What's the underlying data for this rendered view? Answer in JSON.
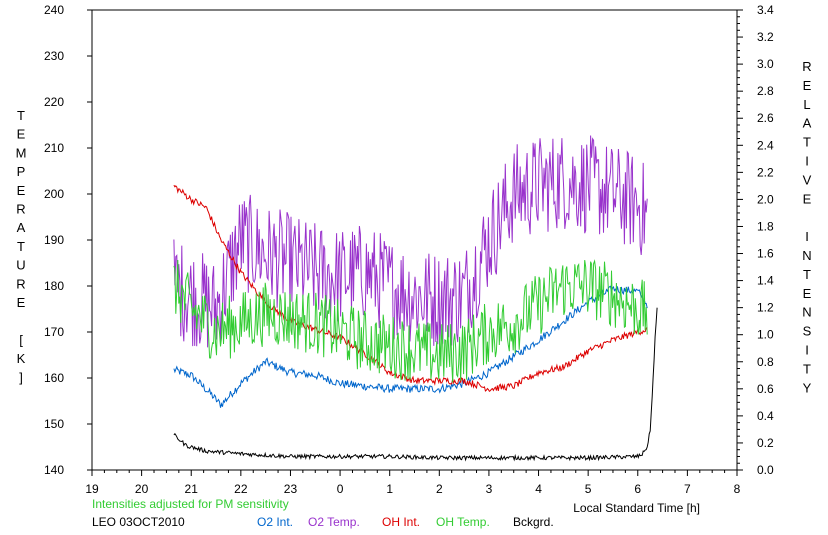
{
  "chart_data": {
    "type": "line",
    "xlabel": "Local Standard Time [h]",
    "ylabel_left": "TEMPERATURE [K]",
    "ylabel_right": "RELATIVE INTENSITY",
    "left_axis": {
      "ylim": [
        140,
        240
      ],
      "ticks": [
        140,
        150,
        160,
        170,
        180,
        190,
        200,
        210,
        220,
        230,
        240
      ]
    },
    "right_axis": {
      "ylim": [
        0,
        3.4
      ],
      "ticks": [
        "0.0",
        "0.2",
        "0.4",
        "0.6",
        "0.8",
        "1.0",
        "1.2",
        "1.4",
        "1.6",
        "1.8",
        "2.0",
        "2.2",
        "2.4",
        "2.6",
        "2.8",
        "3.0",
        "3.2",
        "3.4"
      ]
    },
    "x_axis": {
      "range": [
        19,
        32
      ],
      "ticks": [
        19,
        20,
        21,
        22,
        23,
        24,
        25,
        26,
        27,
        28,
        29,
        30,
        31,
        32
      ],
      "tick_labels": [
        "19",
        "20",
        "21",
        "22",
        "23",
        "0",
        "1",
        "2",
        "3",
        "4",
        "5",
        "6",
        "7",
        "8"
      ]
    },
    "grid": false,
    "note": "Intensities adjusted for PM sensitivity",
    "station": "LEO 03OCT2010",
    "series": [
      {
        "name": "O2 Int.",
        "axis": "right",
        "color": "#0066cc",
        "x": [
          20.65,
          21.0,
          21.4,
          21.6,
          22.0,
          22.5,
          23.0,
          23.5,
          24.0,
          24.5,
          25.0,
          25.5,
          26.0,
          26.5,
          27.0,
          27.5,
          28.0,
          28.5,
          29.0,
          29.5,
          30.0,
          30.2
        ],
        "y": [
          0.74,
          0.7,
          0.56,
          0.48,
          0.64,
          0.8,
          0.72,
          0.7,
          0.64,
          0.62,
          0.6,
          0.6,
          0.6,
          0.64,
          0.72,
          0.84,
          0.96,
          1.1,
          1.24,
          1.34,
          1.32,
          1.22
        ]
      },
      {
        "name": "O2 Temp.",
        "axis": "left",
        "color": "#9933cc",
        "x": [
          20.65,
          21.0,
          21.5,
          22.0,
          22.5,
          23.0,
          23.5,
          24.0,
          24.5,
          25.0,
          25.5,
          26.0,
          26.5,
          27.0,
          27.5,
          28.0,
          28.5,
          29.0,
          29.5,
          30.0,
          30.2
        ],
        "y": [
          180,
          178,
          175,
          190,
          187,
          185,
          183,
          182,
          183,
          180,
          178,
          177,
          178,
          190,
          200,
          202,
          203,
          202,
          200,
          198,
          195
        ]
      },
      {
        "name": "OH Int.",
        "axis": "right",
        "color": "#dd0000",
        "x": [
          20.65,
          21.0,
          21.3,
          21.6,
          22.0,
          22.5,
          23.0,
          23.5,
          24.0,
          24.5,
          25.0,
          25.5,
          26.0,
          26.5,
          27.0,
          27.5,
          28.0,
          28.5,
          29.0,
          29.5,
          30.0,
          30.2
        ],
        "y": [
          2.1,
          2.0,
          1.94,
          1.7,
          1.46,
          1.24,
          1.1,
          1.04,
          0.98,
          0.86,
          0.72,
          0.66,
          0.66,
          0.66,
          0.6,
          0.62,
          0.72,
          0.76,
          0.88,
          0.96,
          1.02,
          1.04
        ]
      },
      {
        "name": "OH Temp.",
        "axis": "left",
        "color": "#33cc33",
        "x": [
          20.65,
          21.0,
          21.5,
          22.0,
          22.5,
          23.0,
          23.5,
          24.0,
          24.5,
          25.0,
          25.5,
          26.0,
          26.5,
          27.0,
          27.5,
          28.0,
          28.5,
          29.0,
          29.5,
          30.0,
          30.2
        ],
        "y": [
          180,
          175,
          170,
          172,
          174,
          173,
          172,
          170,
          168,
          167,
          166,
          165,
          166,
          170,
          172,
          176,
          180,
          180,
          178,
          175,
          174
        ]
      },
      {
        "name": "Bckgrd.",
        "axis": "right",
        "color": "#000000",
        "x": [
          20.65,
          20.9,
          21.3,
          22.0,
          23.0,
          24.0,
          25.0,
          26.0,
          27.0,
          28.0,
          29.0,
          30.0,
          30.1,
          30.2,
          30.25,
          30.3,
          30.35,
          30.4
        ],
        "y": [
          0.26,
          0.18,
          0.14,
          0.12,
          0.1,
          0.1,
          0.1,
          0.09,
          0.09,
          0.09,
          0.09,
          0.1,
          0.12,
          0.18,
          0.3,
          0.6,
          0.98,
          1.24
        ]
      }
    ]
  }
}
